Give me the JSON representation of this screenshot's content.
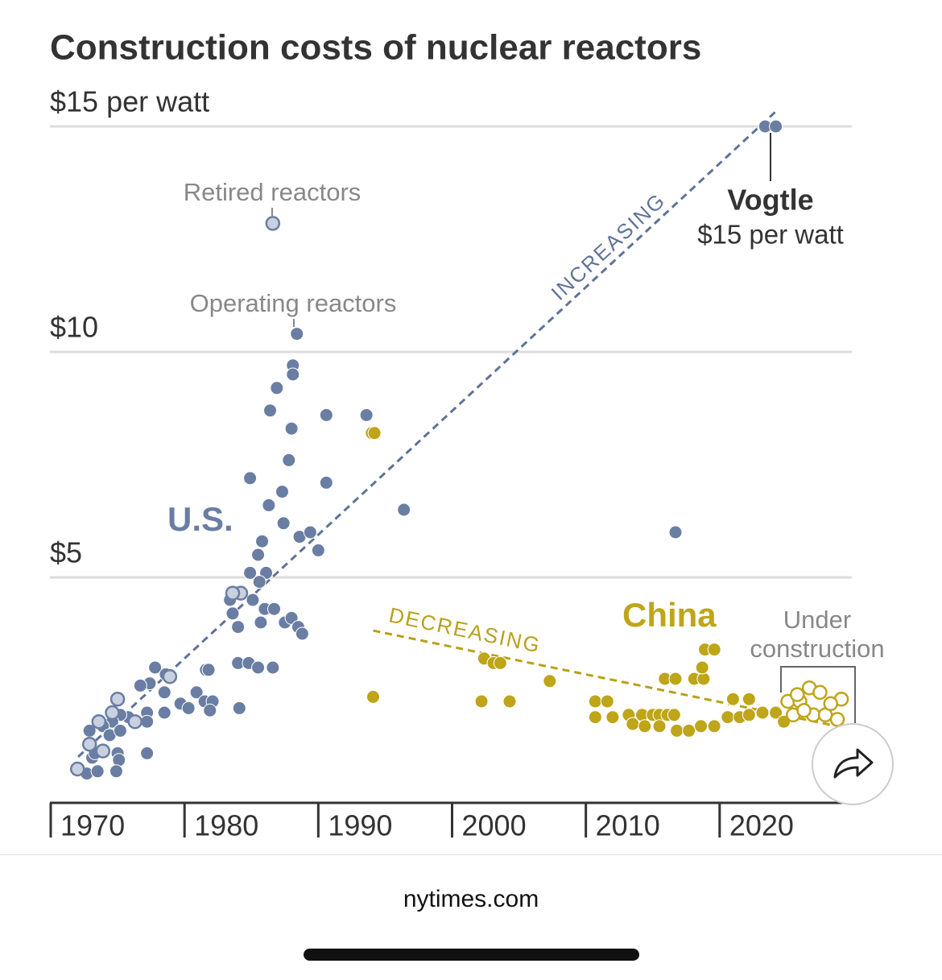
{
  "chart_data": {
    "type": "scatter",
    "title": "Construction costs of nuclear reactors",
    "xlim": [
      1970,
      2030
    ],
    "ylim": [
      0,
      15
    ],
    "xticks": [
      1970,
      1980,
      1990,
      2000,
      2010,
      2020
    ],
    "yticks": [
      {
        "value": 5,
        "label": "$5"
      },
      {
        "value": 10,
        "label": "$10"
      },
      {
        "value": 15,
        "label": "$15 per watt"
      }
    ],
    "grid": true,
    "annotations": {
      "retired": "Retired reactors",
      "operating": "Operating reactors",
      "us": "U.S.",
      "china": "China",
      "vogtle": "Vogtle",
      "vogtle_value": "$15 per watt",
      "under_construction": "Under construction"
    },
    "trends": [
      {
        "label": "INCREASING",
        "color": "#5f7398",
        "x": [
          1972.05,
          2024.3
        ],
        "y": [
          1.02,
          15.36
        ]
      },
      {
        "label": "DECREASING",
        "color": "#b9a117",
        "x": [
          1994.1,
          2028.3
        ],
        "y": [
          3.82,
          1.73
        ]
      }
    ],
    "series": [
      {
        "color": "#6a7ea3",
        "hollow": false,
        "x": [
          1988.4,
          1988.1,
          1988.1,
          1986.9,
          1986.4,
          1988.0,
          1990.6,
          1993.6,
          1987.8,
          1984.9,
          1990.6,
          1987.3,
          1986.3,
          1996.4,
          1987.4,
          1985.8,
          1988.6,
          1989.4,
          1990.0,
          1985.5,
          1984.9,
          1986.1,
          1985.6,
          1983.4,
          1985.1,
          1986.0,
          1986.7,
          1983.6,
          1984.0,
          1985.7,
          1987.5,
          1988.0,
          1988.5,
          1988.8,
          1984.0,
          1984.8,
          1985.5,
          1986.6,
          1981.6,
          1981.8,
          1977.8,
          1978.6,
          1977.4,
          1976.7,
          1978.5,
          1980.9,
          1981.5,
          1979.7,
          1980.3,
          1982.1,
          1981.9,
          1984.1,
          1978.5,
          1977.2,
          1977.2,
          1975.8,
          1975.2,
          1974.6,
          1973.9,
          1972.9,
          1974.4,
          1975.2,
          1977.2,
          1975.0,
          1973.1,
          1975.1,
          1973.3,
          1972.7,
          1973.5,
          1974.9,
          2016.7,
          2023.4,
          2024.2
        ],
        "y": [
          10.4,
          9.7,
          9.5,
          9.2,
          8.7,
          8.3,
          8.6,
          8.6,
          7.6,
          7.2,
          7.1,
          6.9,
          6.6,
          6.5,
          6.2,
          5.8,
          5.9,
          6.0,
          5.6,
          5.5,
          5.1,
          5.1,
          4.9,
          4.5,
          4.5,
          4.3,
          4.3,
          4.2,
          3.9,
          4.0,
          4.0,
          4.1,
          3.9,
          3.75,
          3.1,
          3.1,
          3.0,
          3.0,
          2.95,
          2.95,
          3.0,
          2.85,
          2.65,
          2.6,
          2.45,
          2.45,
          2.25,
          2.2,
          2.1,
          2.25,
          2.05,
          2.1,
          2.0,
          2.0,
          1.8,
          1.9,
          1.95,
          1.8,
          1.7,
          1.6,
          1.5,
          1.6,
          1.1,
          1.1,
          1.0,
          0.95,
          1.1,
          0.65,
          0.7,
          0.7,
          6.0,
          15.0,
          15.0
        ]
      },
      {
        "color": "#6a7ea3",
        "hollow": true,
        "x": [
          1986.6,
          1984.2,
          1983.6,
          1978.9,
          1975.0,
          1973.6,
          1972.9,
          1972.0,
          1973.9,
          1976.3,
          1974.6
        ],
        "y": [
          12.85,
          4.65,
          4.65,
          2.8,
          2.3,
          1.8,
          1.3,
          0.75,
          1.15,
          1.8,
          2.0
        ]
      },
      {
        "color": "#bfa518",
        "hollow": false,
        "x": [
          1994.0,
          1994.2,
          1994.1,
          2002.4,
          2003.1,
          2003.6,
          2002.2,
          2004.3,
          2007.3,
          2010.7,
          2011.6,
          2010.7,
          2012.0,
          2013.2,
          2014.2,
          2015.0,
          2015.5,
          2016.1,
          2016.6,
          2013.5,
          2014.4,
          2015.5,
          2016.8,
          2017.7,
          2018.6,
          2019.6,
          2015.9,
          2016.7,
          2018.1,
          2018.8,
          2018.7,
          2018.9,
          2019.6,
          2021.0,
          2022.2,
          2020.6,
          2021.5,
          2022.2,
          2023.2,
          2024.2,
          2024.8
        ],
        "y": [
          8.2,
          8.2,
          2.35,
          3.2,
          3.1,
          3.1,
          2.25,
          2.25,
          2.7,
          2.25,
          2.25,
          1.9,
          1.9,
          1.95,
          1.95,
          1.95,
          1.95,
          1.95,
          1.95,
          1.75,
          1.7,
          1.7,
          1.6,
          1.6,
          1.7,
          1.7,
          2.75,
          2.75,
          2.75,
          2.75,
          3.0,
          3.4,
          3.4,
          2.3,
          2.3,
          1.9,
          1.9,
          1.95,
          2.0,
          2.0,
          1.8
        ]
      },
      {
        "color": "#bfa518",
        "hollow": true,
        "x": [
          2025.1,
          2026.0,
          2026.7,
          2027.5,
          2029.1,
          2025.5,
          2027.0,
          2027.9,
          2028.8,
          2028.3,
          2026.3,
          2025.8
        ],
        "y": [
          2.25,
          2.25,
          2.55,
          2.45,
          2.3,
          1.95,
          1.95,
          1.95,
          1.85,
          2.2,
          2.05,
          2.4
        ]
      }
    ]
  },
  "footer": "nytimes.com"
}
